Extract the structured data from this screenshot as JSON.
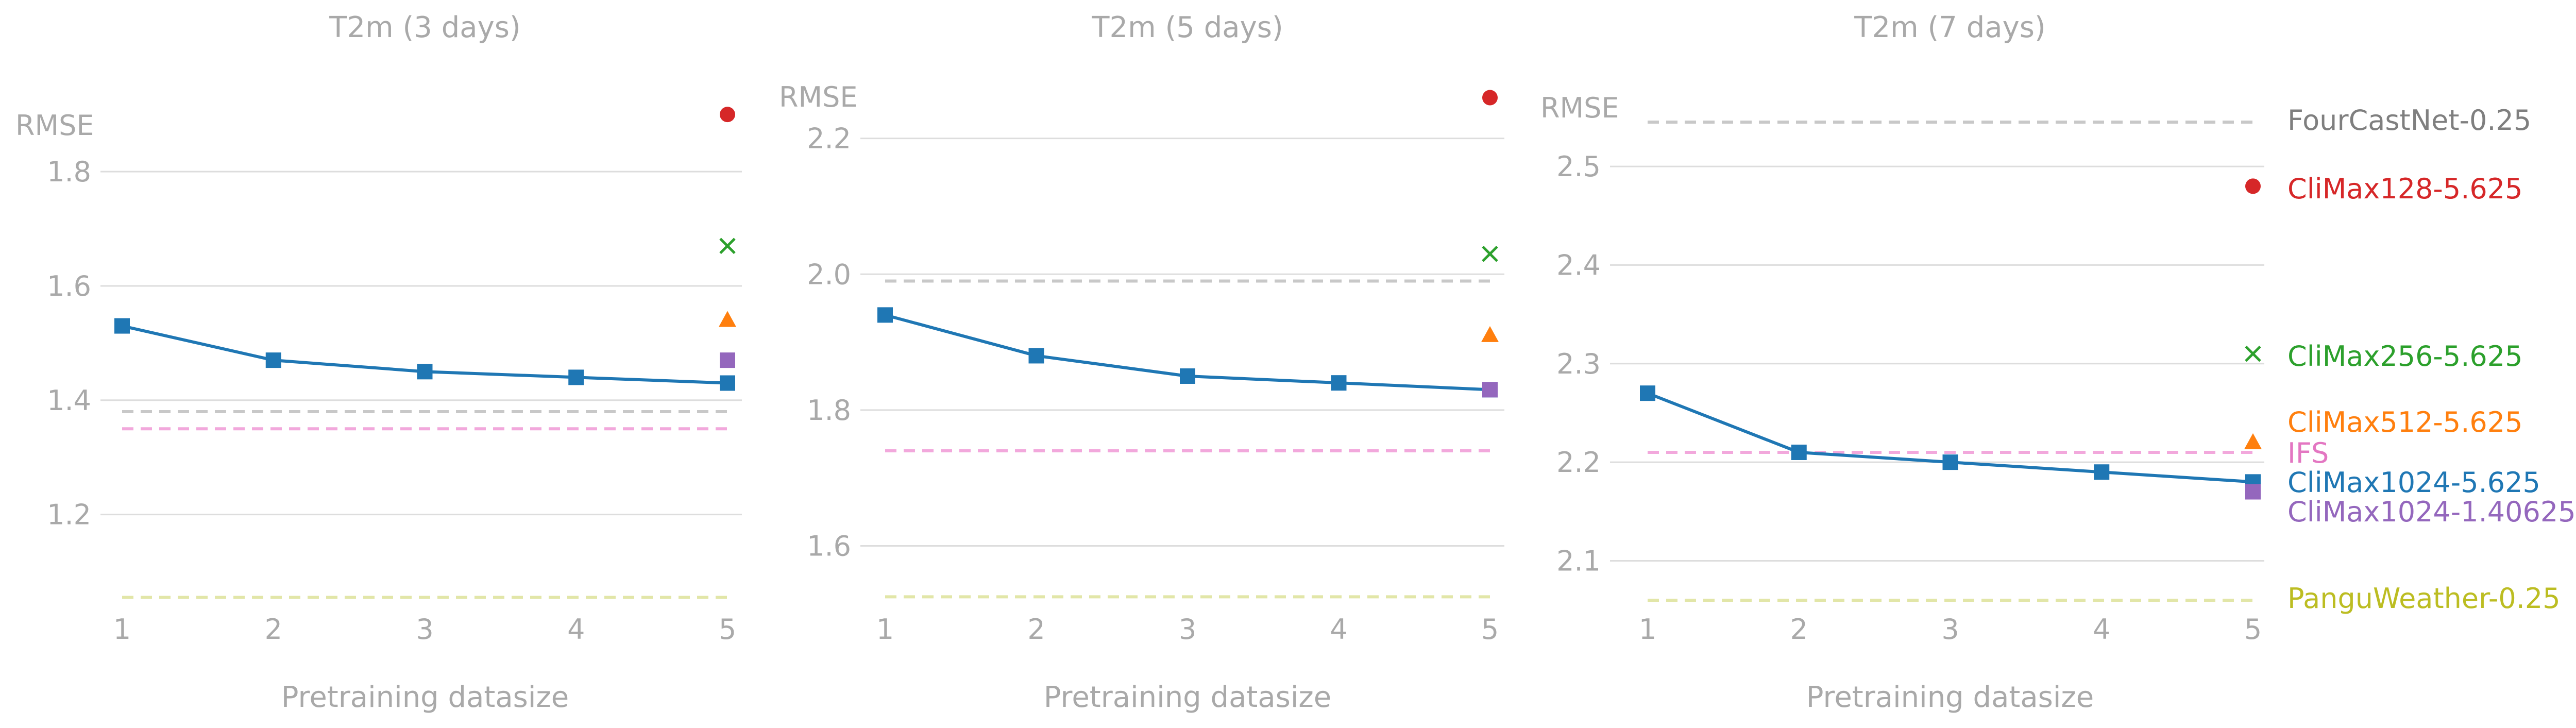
{
  "colors": {
    "text_gray": "#a9a9a9",
    "grid": "#dddddd",
    "line_blue": "#1f77b4",
    "climax128": "#d62728",
    "climax256": "#2ca02c",
    "climax512": "#ff7f0e",
    "climax1024_1_4": "#9467bd",
    "ifs": "#f2a8dc",
    "fourcastnet": "#c8c8c8",
    "pangu": "#e2e6a8",
    "ifs_label": "#e377c2",
    "fourcastnet_label": "#7f7f7f",
    "pangu_label": "#bcbd22"
  },
  "legend": {
    "fourcastnet": "FourCastNet-0.25",
    "climax128": "CliMax128-5.625",
    "climax256": "CliMax256-5.625",
    "climax512": "CliMax512-5.625",
    "ifs": "IFS",
    "climax1024": "CliMax1024-5.625",
    "climax1024_hr": "CliMax1024-1.40625",
    "pangu": "PanguWeather-0.25"
  },
  "chart_data": [
    {
      "type": "line",
      "title": "T2m (3 days)",
      "ylabel": "RMSE",
      "xlabel": "Pretraining datasize",
      "x": [
        1,
        2,
        3,
        4,
        5
      ],
      "xticks": [
        "1",
        "2",
        "3",
        "4",
        "5"
      ],
      "ylim": [
        1.05,
        1.92
      ],
      "yticks": [
        1.2,
        1.4,
        1.6,
        1.8
      ],
      "grid": true,
      "series": [
        {
          "name": "CliMax1024-5.625",
          "values": [
            1.53,
            1.47,
            1.45,
            1.44,
            1.43
          ]
        }
      ],
      "points": [
        {
          "name": "CliMax128-5.625",
          "x": 5,
          "y": 1.9
        },
        {
          "name": "CliMax256-5.625",
          "x": 5,
          "y": 1.67
        },
        {
          "name": "CliMax512-5.625",
          "x": 5,
          "y": 1.54
        },
        {
          "name": "CliMax1024-1.40625",
          "x": 5,
          "y": 1.47
        }
      ],
      "baselines": [
        {
          "name": "FourCastNet-0.25",
          "y": 1.38
        },
        {
          "name": "IFS",
          "y": 1.35
        },
        {
          "name": "PanguWeather-0.25",
          "y": 1.055
        }
      ]
    },
    {
      "type": "line",
      "title": "T2m (5 days)",
      "ylabel": "RMSE",
      "xlabel": "Pretraining datasize",
      "x": [
        1,
        2,
        3,
        4,
        5
      ],
      "xticks": [
        "1",
        "2",
        "3",
        "4",
        "5"
      ],
      "ylim": [
        1.52,
        2.29
      ],
      "yticks": [
        1.6,
        1.8,
        2.0,
        2.2
      ],
      "grid": true,
      "series": [
        {
          "name": "CliMax1024-5.625",
          "values": [
            1.94,
            1.88,
            1.85,
            1.84,
            1.83
          ]
        }
      ],
      "points": [
        {
          "name": "CliMax128-5.625",
          "x": 5,
          "y": 2.26
        },
        {
          "name": "CliMax256-5.625",
          "x": 5,
          "y": 2.03
        },
        {
          "name": "CliMax512-5.625",
          "x": 5,
          "y": 1.91
        },
        {
          "name": "CliMax1024-1.40625",
          "x": 5,
          "y": 1.83
        }
      ],
      "baselines": [
        {
          "name": "FourCastNet-0.25",
          "y": 1.99
        },
        {
          "name": "IFS",
          "y": 1.74
        },
        {
          "name": "PanguWeather-0.25",
          "y": 1.525
        }
      ]
    },
    {
      "type": "line",
      "title": "T2m (7 days)",
      "ylabel": "RMSE",
      "xlabel": "Pretraining datasize",
      "x": [
        1,
        2,
        3,
        4,
        5
      ],
      "xticks": [
        "1",
        "2",
        "3",
        "4",
        "5"
      ],
      "ylim": [
        2.06,
        2.58
      ],
      "yticks": [
        2.1,
        2.2,
        2.3,
        2.4,
        2.5
      ],
      "grid": true,
      "series": [
        {
          "name": "CliMax1024-5.625",
          "values": [
            2.27,
            2.21,
            2.2,
            2.19,
            2.18
          ]
        }
      ],
      "points": [
        {
          "name": "CliMax128-5.625",
          "x": 5,
          "y": 2.48
        },
        {
          "name": "CliMax256-5.625",
          "x": 5,
          "y": 2.31
        },
        {
          "name": "CliMax512-5.625",
          "x": 5,
          "y": 2.22
        },
        {
          "name": "CliMax1024-1.40625",
          "x": 5,
          "y": 2.17
        }
      ],
      "baselines": [
        {
          "name": "FourCastNet-0.25",
          "y": 2.545
        },
        {
          "name": "IFS",
          "y": 2.21
        },
        {
          "name": "PanguWeather-0.25",
          "y": 2.06
        }
      ]
    }
  ]
}
